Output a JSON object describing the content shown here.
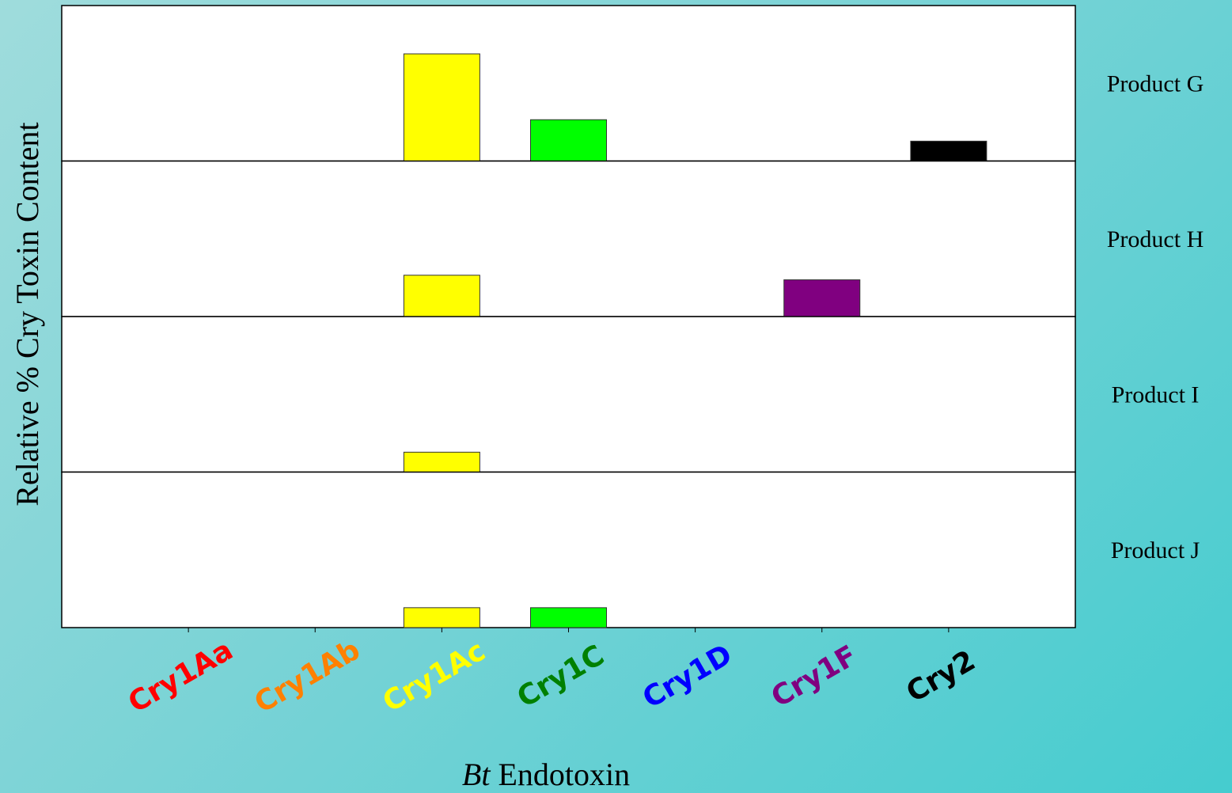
{
  "chart_data": {
    "type": "bar",
    "xlabel_italic": "Bt",
    "xlabel_rest": " Endotoxin",
    "ylabel": "Relative % Cry Toxin Content",
    "categories": [
      "Cry1Aa",
      "Cry1Ab",
      "Cry1Ac",
      "Cry1C",
      "Cry1D",
      "Cry1F",
      "Cry2"
    ],
    "category_colors": [
      "#ff0000",
      "#ff8000",
      "#ffff00",
      "#008000",
      "#0000ff",
      "#800080",
      "#000000"
    ],
    "bar_colors": [
      "#ff0000",
      "#ff8000",
      "#ffff00",
      "#00ff00",
      "#0000ff",
      "#800080",
      "#000000"
    ],
    "ylim": [
      0,
      100
    ],
    "panels": [
      {
        "name": "Product G",
        "values": [
          0,
          0,
          70,
          27,
          0,
          0,
          13
        ]
      },
      {
        "name": "Product H",
        "values": [
          0,
          0,
          27,
          0,
          0,
          24,
          0
        ]
      },
      {
        "name": "Product I",
        "values": [
          0,
          0,
          13,
          0,
          0,
          0,
          0
        ]
      },
      {
        "name": "Product J",
        "values": [
          0,
          0,
          13,
          13,
          0,
          0,
          0
        ]
      }
    ]
  }
}
